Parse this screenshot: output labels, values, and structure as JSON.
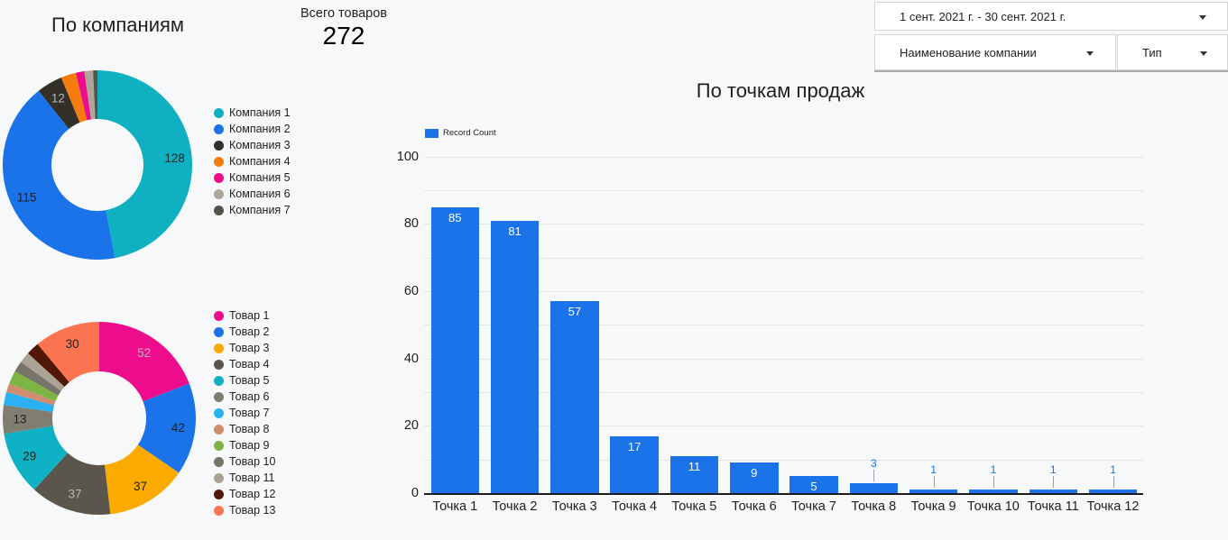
{
  "header": {
    "scorecard": {
      "label": "Всего товаров",
      "value": "272"
    }
  },
  "filters": {
    "date_range": {
      "value": "1 сент. 2021 г. - 30 сент. 2021 г."
    },
    "company": {
      "label": "Наименование компании"
    },
    "type": {
      "label": "Тип"
    }
  },
  "colors": {
    "accent_blue": "#1a73e8",
    "background": "#f7f8f9",
    "label_on_dark": "#b3b8b6",
    "label_on_light": "#1f1f1f",
    "callout_line": "#9aa0a6"
  },
  "chart_data": [
    {
      "type": "pie",
      "donut": true,
      "title": "По компаниям",
      "legend_position": "right",
      "labels": [
        "Компания 1",
        "Компания 2",
        "Компания 3",
        "Компания 4",
        "Компания 5",
        "Компания 6",
        "Компания 7"
      ],
      "values": [
        128,
        115,
        12,
        7,
        4,
        4,
        2
      ],
      "colors": [
        "#0fb0c2",
        "#1a73e8",
        "#33302a",
        "#f57c0d",
        "#ec0c8c",
        "#aea69b",
        "#55524a"
      ],
      "label_min_value": 12
    },
    {
      "type": "pie",
      "donut": true,
      "title": "",
      "legend_position": "right",
      "labels": [
        "Товар 1",
        "Товар 2",
        "Товар 3",
        "Товар 4",
        "Товар 5",
        "Товар 6",
        "Товар 7",
        "Товар 8",
        "Товар 9",
        "Товар 10",
        "Товар 11",
        "Товар 12",
        "Товар 13"
      ],
      "values": [
        52,
        42,
        37,
        37,
        29,
        13,
        6,
        4,
        6,
        5,
        5,
        6,
        30
      ],
      "colors": [
        "#ec0c8c",
        "#1a73e8",
        "#fbab00",
        "#5a564c",
        "#0fb2c4",
        "#807d71",
        "#29b1f2",
        "#d18e6f",
        "#7eb443",
        "#77746a",
        "#aba393",
        "#521807",
        "#fb7450"
      ],
      "label_min_value": 12
    },
    {
      "type": "bar",
      "title": "По точкам продаж",
      "series_name": "Record Count",
      "categories": [
        "Точка 1",
        "Точка 2",
        "Точка 3",
        "Точка 4",
        "Точка 5",
        "Точка 6",
        "Точка 7",
        "Точка 8",
        "Точка 9",
        "Точка 10",
        "Точка 11",
        "Точка 12"
      ],
      "values": [
        85,
        81,
        57,
        17,
        11,
        9,
        5,
        3,
        1,
        1,
        1,
        1
      ],
      "bar_color": "#1a73e8",
      "ylim": [
        0,
        100
      ],
      "yticks": [
        0,
        20,
        40,
        60,
        80,
        100
      ],
      "grid_step": 10,
      "grid": true,
      "legend_position": "top-left"
    }
  ]
}
